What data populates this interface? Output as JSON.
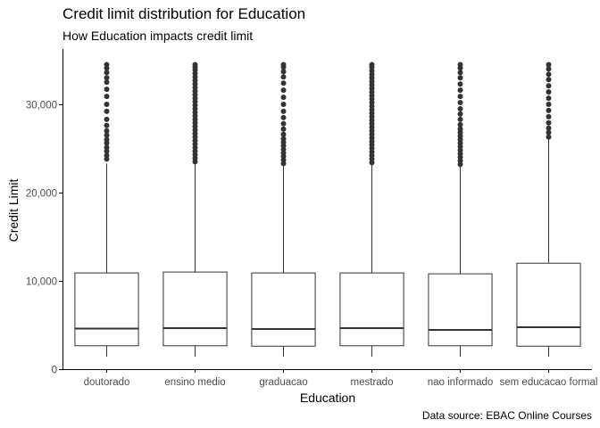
{
  "title": "Credit limit distribution for Education",
  "subtitle": "How Education impacts credit limit",
  "caption": "Data source: EBAC Online Courses",
  "chart_data": {
    "type": "boxplot",
    "title": "Credit limit distribution for Education",
    "subtitle": "How Education impacts credit limit",
    "xlabel": "Education",
    "ylabel": "Credit Limit",
    "ylim": [
      0,
      35000
    ],
    "yticks": [
      0,
      10000,
      20000,
      30000
    ],
    "ytick_labels": [
      "0",
      "10,000",
      "20,000",
      "30,000"
    ],
    "categories": [
      "doutorado",
      "ensino medio",
      "graduacao",
      "mestrado",
      "nao informado",
      "sem educacao formal"
    ],
    "boxes": [
      {
        "category": "doutorado",
        "whisker_low": 1400,
        "q1": 2650,
        "median": 4600,
        "q3": 10900,
        "whisker_high": 23300,
        "outliers": [
          23800,
          24200,
          24700,
          25100,
          25600,
          26000,
          26500,
          27000,
          27600,
          28300,
          29200,
          30000,
          30900,
          31700,
          32500,
          33000,
          33600,
          34100,
          34500
        ]
      },
      {
        "category": "ensino medio",
        "whisker_low": 1400,
        "q1": 2650,
        "median": 4650,
        "q3": 11000,
        "whisker_high": 23400,
        "outliers": [
          23500,
          23900,
          24300,
          24700,
          25100,
          25500,
          25900,
          26300,
          26700,
          27100,
          27500,
          27900,
          28300,
          28700,
          29100,
          29500,
          29900,
          30300,
          30700,
          31100,
          31500,
          31900,
          32300,
          32700,
          33100,
          33500,
          33900,
          34200,
          34500
        ]
      },
      {
        "category": "graduacao",
        "whisker_low": 1400,
        "q1": 2600,
        "median": 4550,
        "q3": 10900,
        "whisker_high": 23200,
        "outliers": [
          23300,
          23700,
          24100,
          24500,
          24900,
          25300,
          25700,
          26100,
          26600,
          27200,
          27800,
          28500,
          29200,
          30000,
          30800,
          31600,
          32400,
          33100,
          33700,
          34200,
          34500
        ]
      },
      {
        "category": "mestrado",
        "whisker_low": 1400,
        "q1": 2650,
        "median": 4650,
        "q3": 10900,
        "whisker_high": 23300,
        "outliers": [
          23400,
          23800,
          24200,
          24600,
          25000,
          25400,
          25800,
          26200,
          26600,
          27000,
          27400,
          27800,
          28200,
          28600,
          29000,
          29400,
          29800,
          30200,
          30600,
          31000,
          31400,
          31800,
          32200,
          32600,
          33000,
          33400,
          33800,
          34200,
          34500
        ]
      },
      {
        "category": "nao informado",
        "whisker_low": 1400,
        "q1": 2650,
        "median": 4450,
        "q3": 10800,
        "whisker_high": 23000,
        "outliers": [
          23200,
          23600,
          24000,
          24400,
          24800,
          25200,
          25600,
          26000,
          26400,
          26800,
          27200,
          27700,
          28300,
          28900,
          29500,
          30200,
          30900,
          31600,
          32300,
          33000,
          33600,
          34100,
          34500
        ]
      },
      {
        "category": "sem educacao formal",
        "whisker_low": 1400,
        "q1": 2600,
        "median": 4750,
        "q3": 12000,
        "whisker_high": 26000,
        "outliers": [
          26300,
          26800,
          27300,
          27900,
          28600,
          29300,
          30000,
          30700,
          31400,
          32100,
          32800,
          33400,
          34000,
          34500
        ]
      }
    ],
    "grid": false,
    "legend": "none",
    "colors": {
      "box_fill": "#ffffff",
      "box_stroke": "#333333",
      "axis": "#000000",
      "tick_text": "#4d4d4d"
    }
  }
}
